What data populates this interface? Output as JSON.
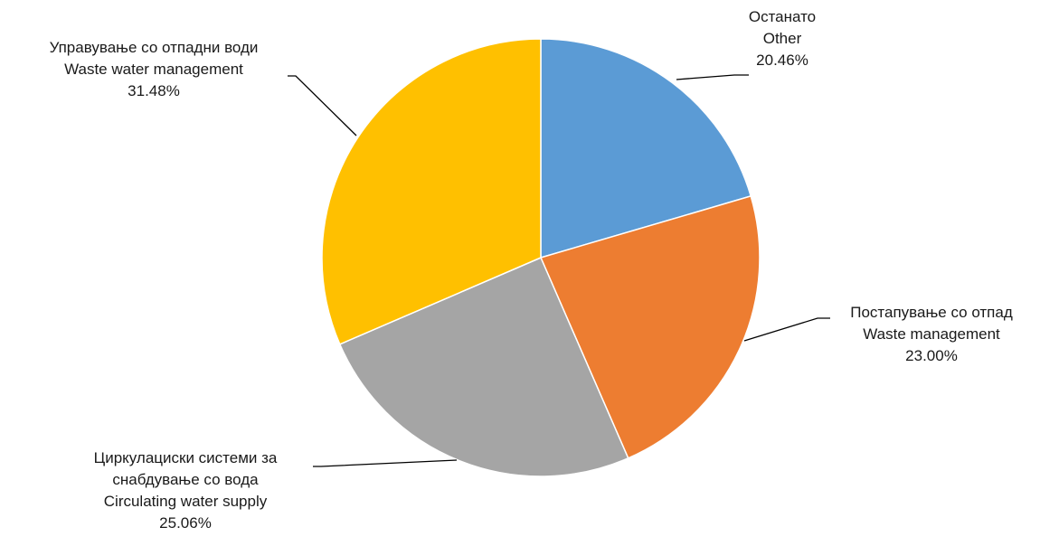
{
  "chart_data": {
    "type": "pie",
    "start_angle_deg": 0,
    "direction": "clockwise",
    "slices": [
      {
        "label_lines": [
          "Останато",
          "Other",
          "20.46%"
        ],
        "value": 20.46,
        "color": "#5B9BD5",
        "label_side": "right-top"
      },
      {
        "label_lines": [
          "Постапување со отпад",
          "Waste management",
          "23.00%"
        ],
        "value": 23.0,
        "color": "#ED7D31",
        "label_side": "right-bottom"
      },
      {
        "label_lines": [
          "Циркулациски системи за",
          "снабдување со вода",
          "Circulating water supply",
          "25.06%"
        ],
        "value": 25.06,
        "color": "#A5A5A5",
        "label_side": "left-bottom"
      },
      {
        "label_lines": [
          "Управување со отпадни води",
          "Waste water management",
          "31.48%"
        ],
        "value": 31.48,
        "color": "#FFC000",
        "label_side": "left-top"
      }
    ]
  }
}
